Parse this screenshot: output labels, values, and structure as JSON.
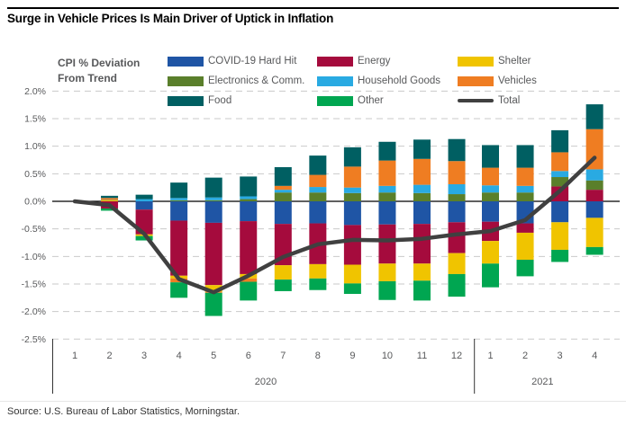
{
  "title": "Surge in Vehicle Prices Is Main Driver of Uptick in Inflation",
  "source": "Source: U.S. Bureau of Labor Statistics, Morningstar.",
  "colors": {
    "grid": "#c9c9c9",
    "zero_line": "#000000",
    "axis_text": "#58595b",
    "divider": "#333333"
  },
  "legend_columns": [
    [
      "covid",
      "electronics",
      "food"
    ],
    [
      "energy",
      "household",
      "other"
    ],
    [
      "shelter",
      "vehicles",
      "total"
    ]
  ],
  "chart_data": {
    "type": "bar",
    "stacked": true,
    "title": "Surge in Vehicle Prices Is Main Driver of Uptick in Inflation",
    "ylabel": "CPI % Deviation From Trend",
    "xlabel": "",
    "grid": true,
    "legend_position": "top",
    "ylim": [
      -2.5,
      2.0
    ],
    "ytick_step": 0.5,
    "ytick_labels": [
      "2.0%",
      "1.5%",
      "1.0%",
      "0.5%",
      "0.0%",
      "-0.5%",
      "-1.0%",
      "-1.5%",
      "-2.0%",
      "-2.5%"
    ],
    "x_labels": [
      "1",
      "2",
      "3",
      "4",
      "5",
      "6",
      "7",
      "8",
      "9",
      "10",
      "11",
      "12",
      "1",
      "2",
      "3",
      "4"
    ],
    "year_groups": [
      {
        "label": "2020",
        "from": 0,
        "to": 11
      },
      {
        "label": "2021",
        "from": 12,
        "to": 15
      }
    ],
    "series": [
      {
        "key": "covid",
        "name": "COVID-19 Hard Hit",
        "color": "#1f55a5",
        "values": [
          0,
          0,
          -0.15,
          -0.35,
          -0.39,
          -0.36,
          -0.41,
          -0.4,
          -0.43,
          -0.42,
          -0.41,
          -0.38,
          -0.37,
          -0.4,
          -0.38,
          -0.3
        ]
      },
      {
        "key": "energy",
        "name": "Energy",
        "color": "#a50b3d",
        "values": [
          0,
          -0.13,
          -0.45,
          -1.0,
          -1.13,
          -0.96,
          -0.75,
          -0.74,
          -0.72,
          -0.71,
          -0.72,
          -0.56,
          -0.35,
          -0.17,
          0.27,
          0.21
        ]
      },
      {
        "key": "shelter",
        "name": "Shelter",
        "color": "#f0c400",
        "values": [
          0,
          0.02,
          -0.03,
          -0.05,
          -0.12,
          -0.08,
          -0.26,
          -0.26,
          -0.34,
          -0.32,
          -0.31,
          -0.38,
          -0.41,
          -0.49,
          -0.5,
          -0.53
        ]
      },
      {
        "key": "electronics",
        "name": "Electronics & Comm.",
        "color": "#5a7f2b",
        "values": [
          0,
          0.01,
          0,
          0.02,
          0.02,
          0.04,
          0.16,
          0.16,
          0.15,
          0.16,
          0.15,
          0.13,
          0.16,
          0.16,
          0.17,
          0.17
        ]
      },
      {
        "key": "household",
        "name": "Household Goods",
        "color": "#29aae2",
        "values": [
          0,
          0,
          0.04,
          0.04,
          0.05,
          0.05,
          0.05,
          0.1,
          0.1,
          0.12,
          0.15,
          0.18,
          0.13,
          0.12,
          0.11,
          0.2
        ]
      },
      {
        "key": "vehicles",
        "name": "Vehicles",
        "color": "#ef7d22",
        "values": [
          0,
          0.03,
          0,
          -0.07,
          -0.02,
          -0.06,
          0.07,
          0.22,
          0.38,
          0.46,
          0.47,
          0.42,
          0.32,
          0.33,
          0.34,
          0.73
        ]
      },
      {
        "key": "food",
        "name": "Food",
        "color": "#005f62",
        "values": [
          0,
          0.04,
          0.08,
          0.28,
          0.36,
          0.36,
          0.34,
          0.35,
          0.35,
          0.34,
          0.35,
          0.4,
          0.41,
          0.41,
          0.4,
          0.45
        ]
      },
      {
        "key": "other",
        "name": "Other",
        "color": "#00a651",
        "values": [
          0,
          -0.04,
          -0.08,
          -0.28,
          -0.42,
          -0.34,
          -0.21,
          -0.21,
          -0.19,
          -0.34,
          -0.36,
          -0.41,
          -0.43,
          -0.3,
          -0.22,
          -0.14
        ]
      }
    ],
    "line_series": {
      "key": "total",
      "name": "Total",
      "color": "#404040",
      "values": [
        0.0,
        -0.07,
        -0.59,
        -1.41,
        -1.65,
        -1.35,
        -1.01,
        -0.78,
        -0.7,
        -0.71,
        -0.68,
        -0.6,
        -0.54,
        -0.34,
        0.19,
        0.79
      ]
    }
  }
}
